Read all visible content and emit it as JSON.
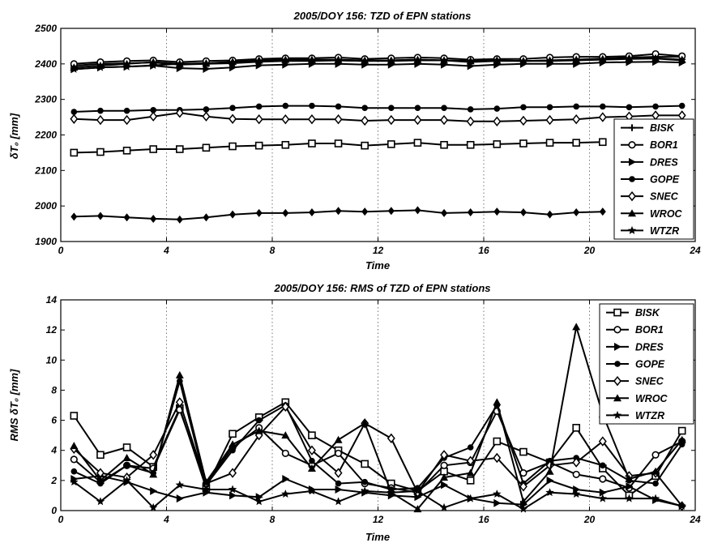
{
  "chart_data": [
    {
      "type": "line",
      "title": "2005/DOY 156: TZD of EPN stations",
      "xlabel": "Time",
      "ylabel": "δT₀ [mm]",
      "xlim": [
        0,
        24
      ],
      "ylim": [
        1900,
        2500
      ],
      "xticks": [
        0,
        4,
        8,
        12,
        16,
        20,
        24
      ],
      "yticks": [
        1900,
        2000,
        2100,
        2200,
        2300,
        2400,
        2500
      ],
      "grid": "x-dotted",
      "legend_position": "right",
      "x": [
        0.5,
        1.5,
        2.5,
        3.5,
        4.5,
        5.5,
        6.5,
        7.5,
        8.5,
        9.5,
        10.5,
        11.5,
        12.5,
        13.5,
        14.5,
        15.5,
        16.5,
        17.5,
        18.5,
        19.5,
        20.5,
        21.5,
        22.5,
        23.5
      ],
      "series": [
        {
          "name": "BISK",
          "marker": "plus",
          "values": [
            2395,
            2400,
            2402,
            2404,
            2398,
            2400,
            2404,
            2408,
            2410,
            2410,
            2410,
            2408,
            2410,
            2412,
            2410,
            2405,
            2408,
            2408,
            2410,
            2412,
            2415,
            2418,
            2420,
            2420
          ]
        },
        {
          "name": "BOR1",
          "marker": "circle",
          "values": [
            2400,
            2405,
            2408,
            2410,
            2405,
            2408,
            2410,
            2414,
            2416,
            2416,
            2418,
            2414,
            2416,
            2418,
            2416,
            2412,
            2414,
            2414,
            2418,
            2420,
            2420,
            2422,
            2428,
            2422
          ]
        },
        {
          "name": "DRES",
          "marker": "triangle-right",
          "values": [
            2385,
            2390,
            2392,
            2395,
            2388,
            2386,
            2390,
            2396,
            2398,
            2400,
            2400,
            2398,
            2398,
            2400,
            2398,
            2394,
            2398,
            2400,
            2400,
            2400,
            2404,
            2405,
            2406,
            2404
          ]
        },
        {
          "name": "GOPE",
          "marker": "circle-filled",
          "values": [
            2265,
            2268,
            2268,
            2270,
            2270,
            2272,
            2276,
            2280,
            2282,
            2282,
            2280,
            2276,
            2276,
            2276,
            2276,
            2272,
            2274,
            2278,
            2278,
            2280,
            2280,
            2278,
            2280,
            2282
          ]
        },
        {
          "name": "SNEC",
          "marker": "diamond",
          "values": [
            2245,
            2242,
            2242,
            2252,
            2262,
            2252,
            2245,
            2244,
            2244,
            2244,
            2244,
            2240,
            2242,
            2242,
            2242,
            2238,
            2238,
            2240,
            2242,
            2244,
            2250,
            2252,
            2255,
            2255
          ]
        },
        {
          "name": "WROC",
          "marker": "triangle-up",
          "values": [
            2390,
            2395,
            2400,
            2405,
            2400,
            2402,
            2406,
            2410,
            2412,
            2412,
            2412,
            2410,
            2410,
            2412,
            2410,
            2408,
            2410,
            2408,
            2410,
            2412,
            2414,
            2416,
            2416,
            2412
          ]
        },
        {
          "name": "WTZR",
          "marker": "star",
          "values": [
            2385,
            2390,
            2392,
            2396,
            2400,
            2400,
            2402,
            2406,
            2408,
            2408,
            2410,
            2408,
            2408,
            2410,
            2410,
            2408,
            2410,
            2408,
            2408,
            2410,
            2412,
            2414,
            2415,
            2410
          ]
        },
        {
          "name": "",
          "marker": "square",
          "values": [
            2150,
            2152,
            2156,
            2160,
            2160,
            2164,
            2168,
            2170,
            2172,
            2176,
            2176,
            2170,
            2174,
            2178,
            2172,
            2172,
            2174,
            2176,
            2178,
            2178,
            2180,
            null,
            null,
            null
          ]
        },
        {
          "name": "",
          "marker": "diamond-filled",
          "values": [
            1970,
            1972,
            1968,
            1964,
            1962,
            1968,
            1976,
            1980,
            1980,
            1982,
            1986,
            1984,
            1986,
            1988,
            1980,
            1982,
            1984,
            1982,
            1976,
            1982,
            1984,
            null,
            null,
            null
          ]
        }
      ]
    },
    {
      "type": "line",
      "title": "2005/DOY 156: RMS of TZD of EPN stations",
      "xlabel": "Time",
      "ylabel": "RMS δT₀ [mm]",
      "xlim": [
        0,
        24
      ],
      "ylim": [
        0,
        14
      ],
      "xticks": [
        0,
        4,
        8,
        12,
        16,
        20,
        24
      ],
      "yticks": [
        0,
        2,
        4,
        6,
        8,
        10,
        12,
        14
      ],
      "grid": "x-dotted",
      "legend_position": "top-right",
      "x": [
        0.5,
        1.5,
        2.5,
        3.5,
        4.5,
        5.5,
        6.5,
        7.5,
        8.5,
        9.5,
        10.5,
        11.5,
        12.5,
        13.5,
        14.5,
        15.5,
        16.5,
        17.5,
        18.5,
        19.5,
        20.5,
        21.5,
        22.5,
        23.5
      ],
      "series": [
        {
          "name": "BISK",
          "marker": "square",
          "values": [
            6.3,
            3.7,
            4.2,
            2.9,
            6.8,
            1.5,
            5.1,
            6.2,
            7.2,
            5.0,
            4.0,
            3.1,
            1.8,
            1.3,
            2.6,
            2.0,
            4.6,
            3.9,
            3.2,
            5.5,
            2.8,
            1.0,
            2.3,
            5.3
          ]
        },
        {
          "name": "BOR1",
          "marker": "circle",
          "values": [
            3.4,
            1.9,
            3.0,
            2.8,
            6.7,
            1.8,
            4.2,
            5.5,
            3.8,
            3.0,
            3.8,
            1.8,
            1.5,
            1.2,
            3.0,
            3.2,
            6.6,
            2.5,
            3.2,
            2.4,
            2.1,
            1.5,
            3.7,
            4.6
          ]
        },
        {
          "name": "DRES",
          "marker": "triangle-right",
          "values": [
            2.1,
            2.3,
            1.9,
            1.3,
            0.8,
            1.2,
            1.0,
            0.9,
            2.1,
            1.4,
            1.4,
            1.2,
            1.0,
            0.9,
            1.7,
            0.8,
            0.5,
            0.4,
            2.0,
            1.4,
            1.2,
            1.6,
            0.7,
            0.3
          ]
        },
        {
          "name": "GOPE",
          "marker": "circle-filled",
          "values": [
            2.6,
            1.8,
            3.0,
            2.5,
            8.6,
            1.7,
            4.0,
            6.0,
            7.0,
            3.3,
            1.8,
            1.9,
            1.4,
            1.5,
            3.5,
            4.2,
            7.0,
            1.8,
            3.3,
            3.5,
            3.0,
            2.0,
            1.8,
            4.4
          ]
        },
        {
          "name": "SNEC",
          "marker": "diamond",
          "values": [
            4.1,
            2.5,
            2.2,
            3.7,
            7.2,
            1.8,
            2.5,
            5.0,
            6.9,
            4.0,
            2.5,
            5.8,
            4.8,
            1.2,
            3.7,
            3.3,
            3.5,
            1.6,
            3.0,
            3.2,
            4.6,
            2.3,
            2.5,
            0.3
          ]
        },
        {
          "name": "WROC",
          "marker": "triangle-up",
          "values": [
            4.3,
            2.0,
            3.5,
            2.4,
            9.0,
            1.9,
            4.4,
            5.3,
            5.0,
            2.8,
            4.7,
            5.8,
            1.2,
            0.1,
            2.2,
            2.5,
            7.2,
            0.6,
            2.6,
            12.2,
            6.4,
            2.1,
            2.6,
            4.7
          ]
        },
        {
          "name": "WTZR",
          "marker": "star",
          "values": [
            1.9,
            0.6,
            2.0,
            0.2,
            1.7,
            1.4,
            1.4,
            0.6,
            1.1,
            1.3,
            0.6,
            1.3,
            1.2,
            1.3,
            0.2,
            0.8,
            1.1,
            0.1,
            1.2,
            1.1,
            0.8,
            0.8,
            0.8,
            0.3
          ]
        }
      ]
    }
  ]
}
